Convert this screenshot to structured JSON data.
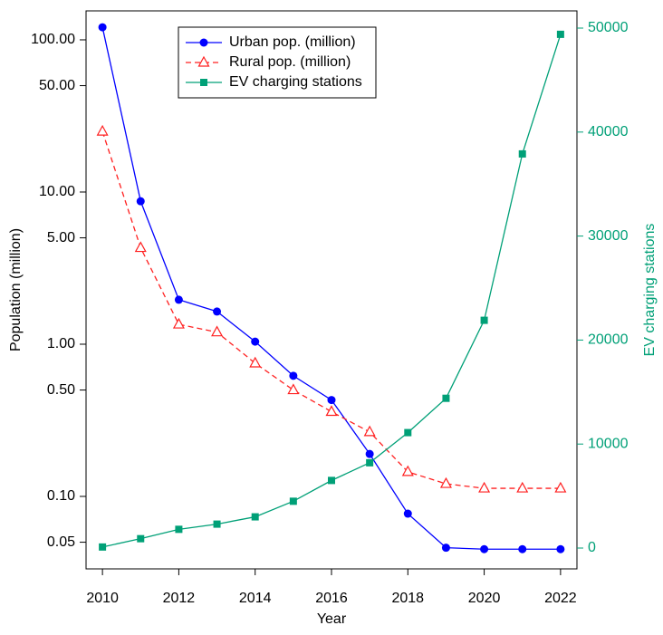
{
  "chart_data": {
    "type": "line",
    "x_label": "Year",
    "y_label": "Population (million)",
    "y2_label": "EV charging stations",
    "x": [
      2010,
      2011,
      2012,
      2013,
      2014,
      2015,
      2016,
      2017,
      2018,
      2019,
      2020,
      2021,
      2022
    ],
    "xlim": [
      2009.57,
      2022.43
    ],
    "xticks": [
      2010,
      2012,
      2014,
      2016,
      2018,
      2020,
      2022
    ],
    "y_scale": "log",
    "ylim": [
      0.0334,
      155
    ],
    "yticks": [
      {
        "value": 0.05,
        "label": "0.05"
      },
      {
        "value": 0.1,
        "label": "0.10"
      },
      {
        "value": 0.5,
        "label": "0.50"
      },
      {
        "value": 1,
        "label": "1.00"
      },
      {
        "value": 5,
        "label": "5.00"
      },
      {
        "value": 10,
        "label": "10.00"
      },
      {
        "value": 50,
        "label": "50.00"
      },
      {
        "value": 100,
        "label": "100.00"
      }
    ],
    "y2lim": [
      -2003,
      51655
    ],
    "y2ticks": [
      0,
      10000,
      20000,
      30000,
      40000,
      50000
    ],
    "y2_color": "#00a077",
    "legend_position": "top-left",
    "series": [
      {
        "name": "Urban pop. (million)",
        "color": "#0000ff",
        "marker": "circle",
        "line": "solid",
        "values": [
          121,
          8.7,
          1.96,
          1.64,
          1.04,
          0.62,
          0.43,
          0.19,
          0.077,
          0.046,
          0.045,
          0.045,
          0.045
        ]
      },
      {
        "name": "Rural pop. (million)",
        "color": "#ff2020",
        "marker": "triangle",
        "line": "dashed",
        "values": [
          25,
          4.3,
          1.35,
          1.2,
          0.75,
          0.5,
          0.36,
          0.265,
          0.145,
          0.121,
          0.113,
          0.113,
          0.113
        ]
      },
      {
        "name": "EV charging stations",
        "color": "#00a077",
        "marker": "square",
        "line": "solid",
        "axis": "y2",
        "values": [
          100,
          900,
          1800,
          2300,
          3000,
          4500,
          6500,
          8200,
          11100,
          14400,
          21900,
          37900,
          49400
        ]
      }
    ]
  }
}
